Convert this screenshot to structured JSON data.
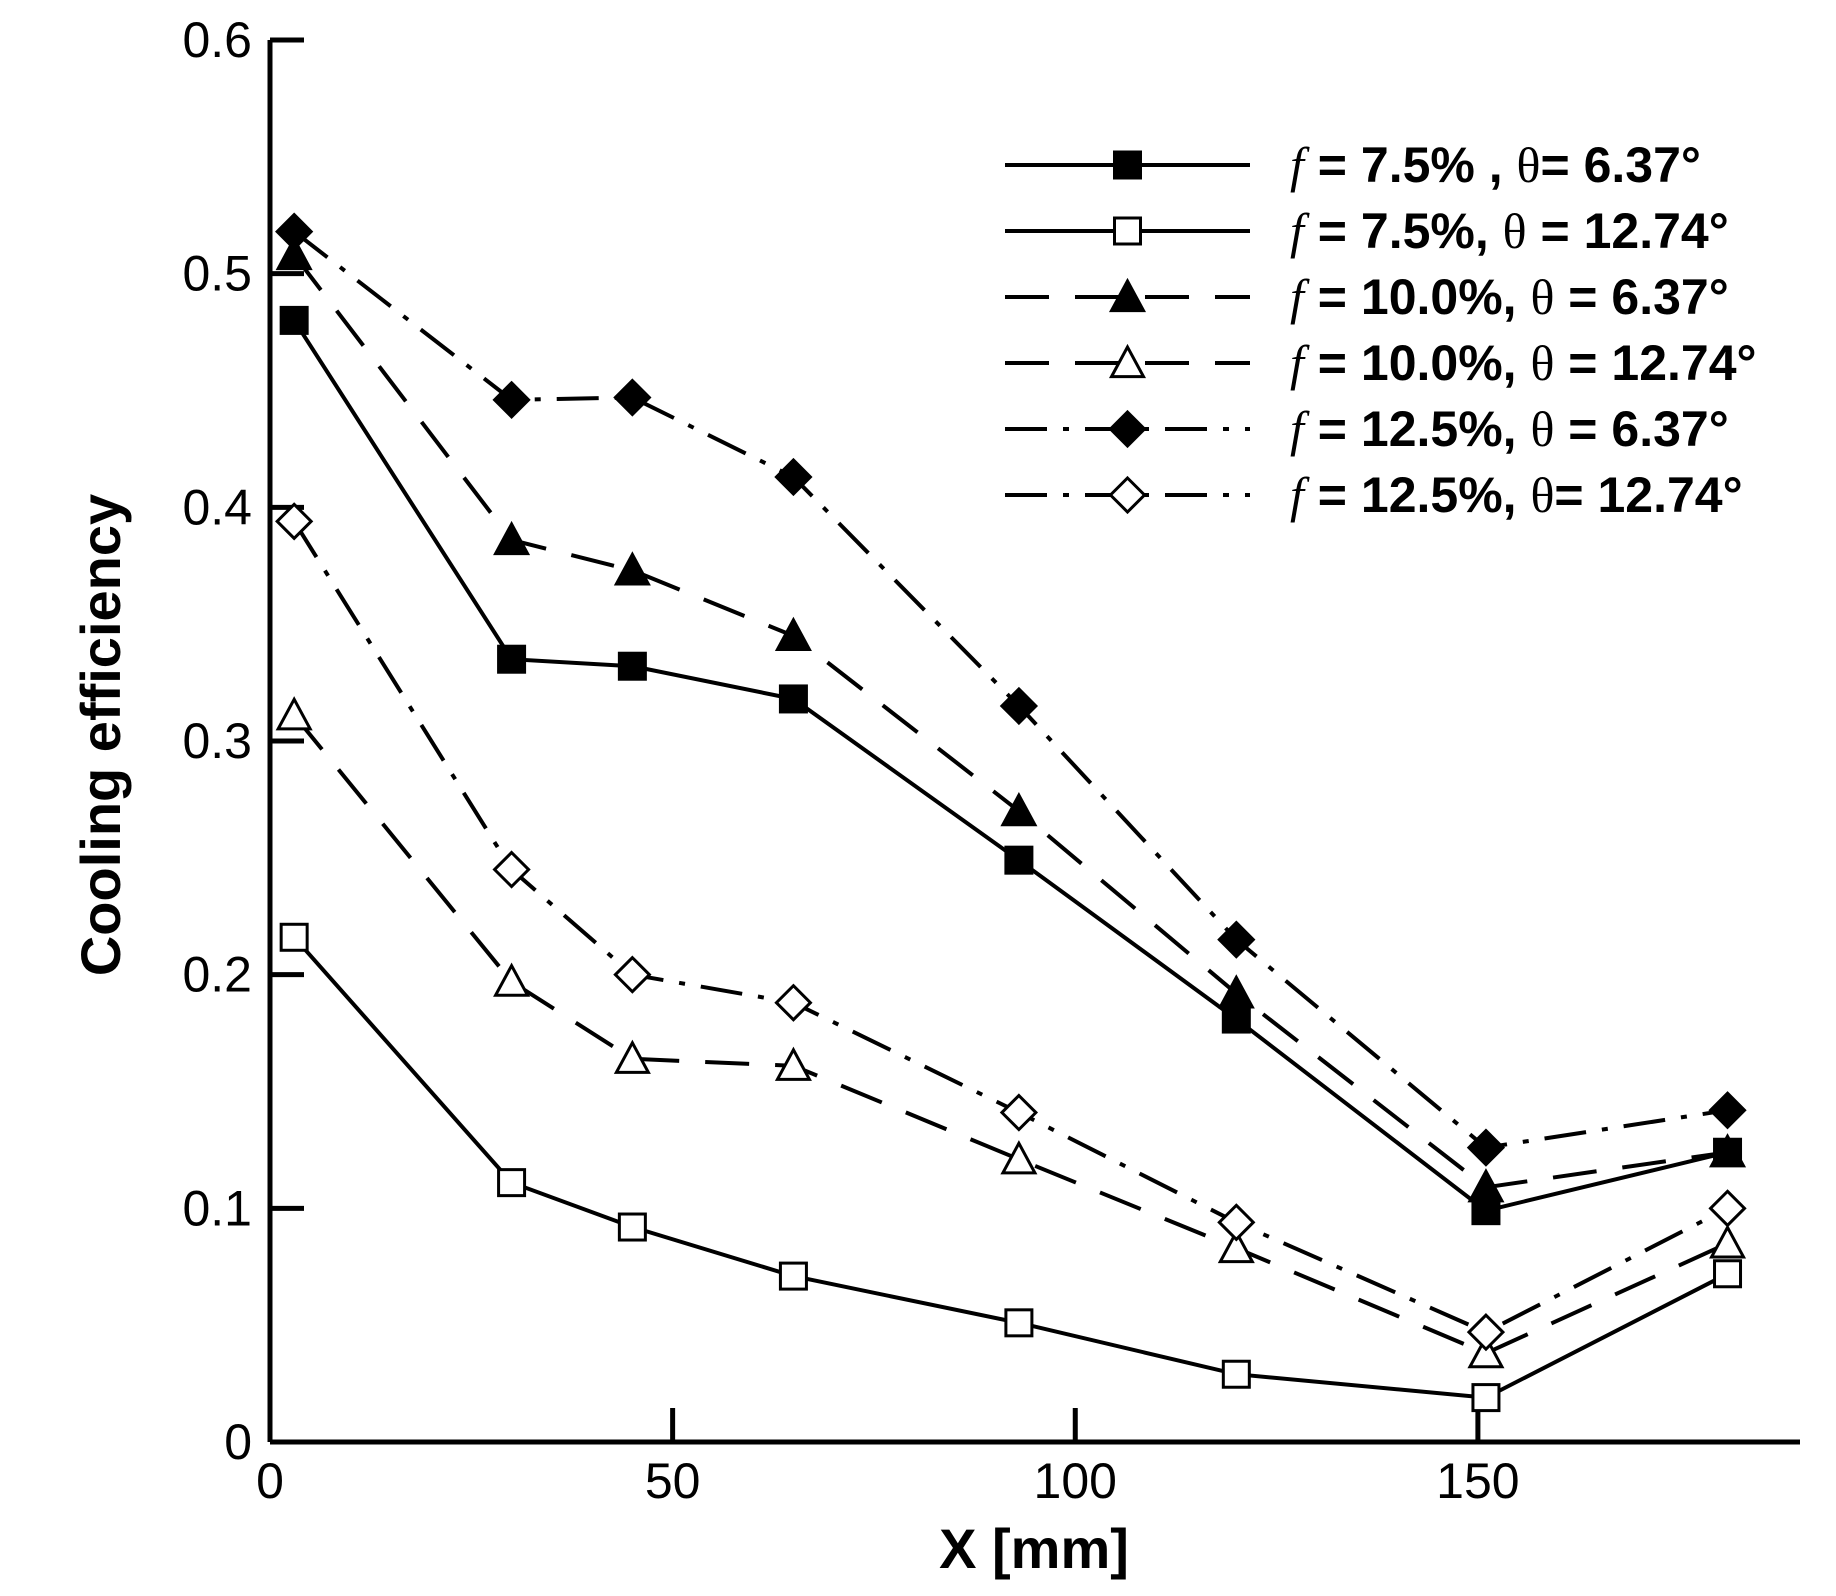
{
  "chart_data": {
    "type": "line",
    "title": "",
    "xlabel": "X [mm]",
    "ylabel": "Cooling efficiency",
    "xlim": [
      0,
      190
    ],
    "ylim": [
      0,
      0.6
    ],
    "xticks": [
      0,
      50,
      100,
      150
    ],
    "xtick_labels": [
      "0",
      "50",
      "100",
      "150"
    ],
    "yticks": [
      0,
      0.1,
      0.2,
      0.3,
      0.4,
      0.5,
      0.6
    ],
    "ytick_labels": [
      "0",
      "0.1",
      "0.2",
      "0.3",
      "0.4",
      "0.5",
      "0.6"
    ],
    "grid": false,
    "legend_position": "top-right",
    "x": [
      3,
      30,
      45,
      65,
      93,
      120,
      151,
      181
    ],
    "series": [
      {
        "name": "f = 7.5% , θ= 6.37°",
        "legend": {
          "f": "f",
          "pre": " = 7.5% , ",
          "theta": "θ",
          "post": "= 6.37°"
        },
        "line": "solid",
        "marker": "square",
        "filled": true,
        "values": [
          0.48,
          0.335,
          0.332,
          0.318,
          0.249,
          0.181,
          0.099,
          0.124
        ]
      },
      {
        "name": "f = 7.5%, θ = 12.74°",
        "legend": {
          "f": "f",
          "pre": " = 7.5%, ",
          "theta": "θ",
          "post": " = 12.74°"
        },
        "line": "solid",
        "marker": "square",
        "filled": false,
        "values": [
          0.216,
          0.111,
          0.092,
          0.071,
          0.051,
          0.029,
          0.019,
          0.072
        ]
      },
      {
        "name": "f = 10.0%, θ = 6.37°",
        "legend": {
          "f": "f",
          "pre": " = 10.0%, ",
          "theta": "θ",
          "post": " = 6.37°"
        },
        "line": "dashed",
        "marker": "triangle",
        "filled": true,
        "values": [
          0.508,
          0.386,
          0.373,
          0.345,
          0.27,
          0.192,
          0.109,
          0.124
        ]
      },
      {
        "name": "f = 10.0%, θ = 12.74°",
        "legend": {
          "f": "f",
          "pre": " = 10.0%, ",
          "theta": "θ",
          "post": " = 12.74°"
        },
        "line": "dashed",
        "marker": "triangle",
        "filled": false,
        "values": [
          0.311,
          0.197,
          0.164,
          0.161,
          0.121,
          0.083,
          0.038,
          0.085
        ]
      },
      {
        "name": "f = 12.5%, θ = 6.37°",
        "legend": {
          "f": "f",
          "pre": " = 12.5%, ",
          "theta": "θ",
          "post": " = 6.37°"
        },
        "line": "dashdot",
        "marker": "diamond",
        "filled": true,
        "values": [
          0.518,
          0.446,
          0.447,
          0.413,
          0.315,
          0.215,
          0.126,
          0.142
        ]
      },
      {
        "name": "f = 12.5%, θ= 12.74°",
        "legend": {
          "f": "f",
          "pre": " = 12.5%, ",
          "theta": "θ",
          "post": "= 12.74°"
        },
        "line": "dashdot",
        "marker": "diamond",
        "filled": false,
        "values": [
          0.394,
          0.245,
          0.2,
          0.188,
          0.141,
          0.094,
          0.047,
          0.1
        ]
      }
    ]
  }
}
